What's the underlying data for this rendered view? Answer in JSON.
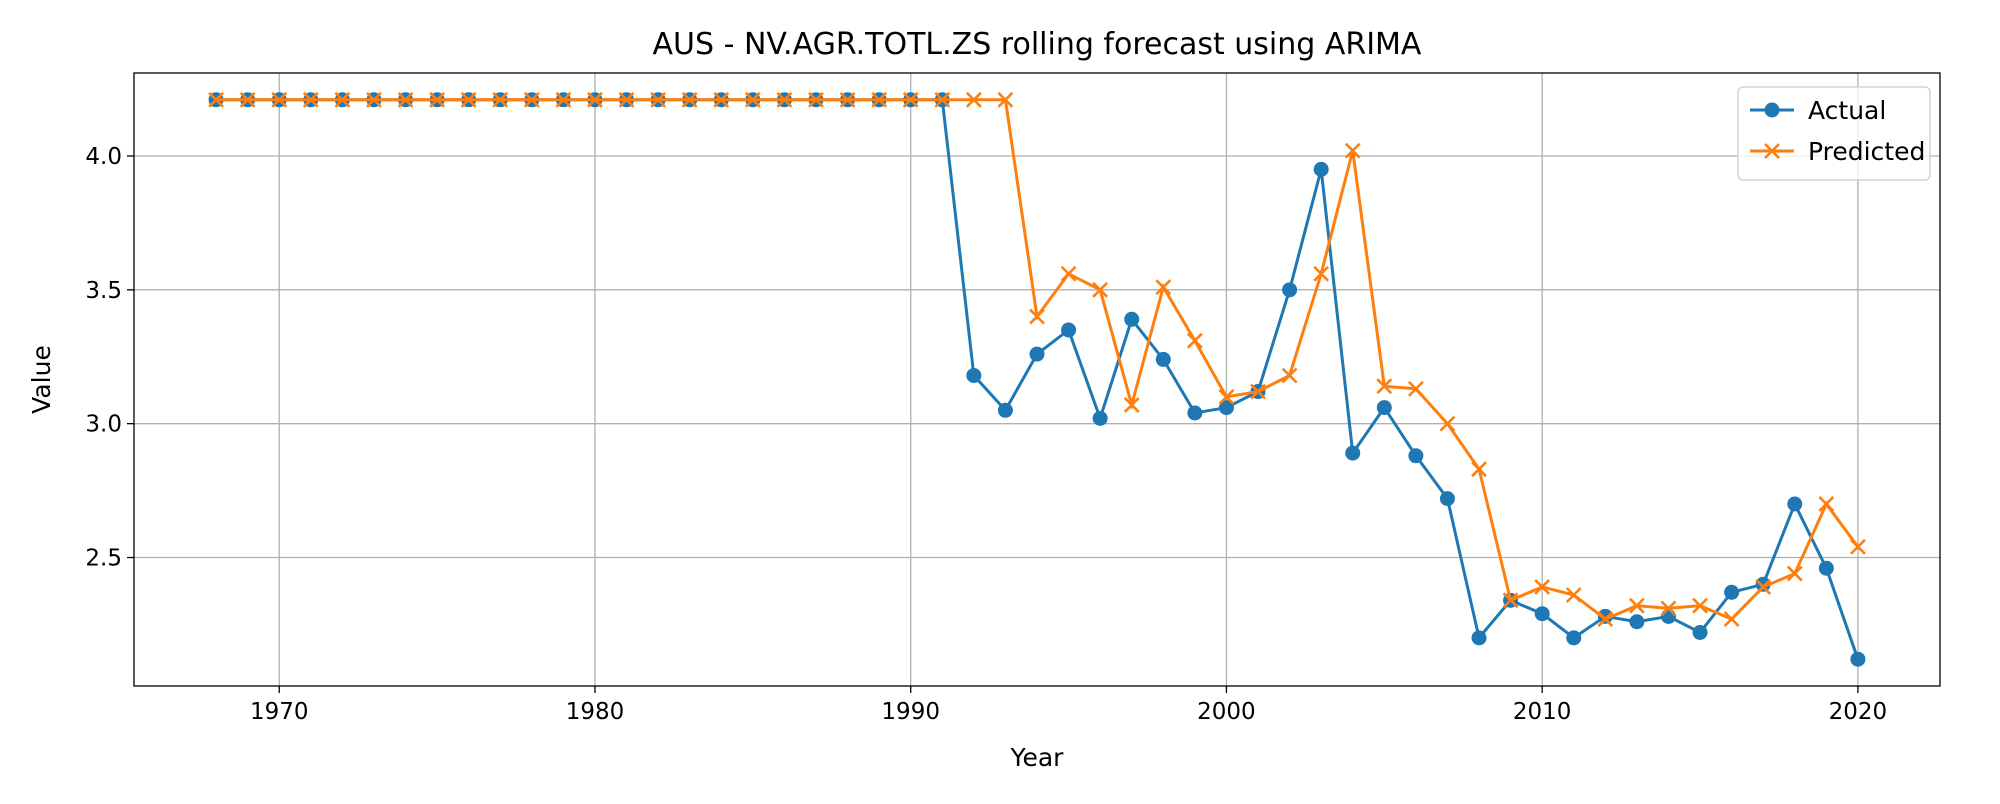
{
  "chart_data": {
    "type": "line",
    "title": "AUS - NV.AGR.TOTL.ZS rolling forecast using ARIMA",
    "xlabel": "Year",
    "ylabel": "Value",
    "xlim": [
      1965.4,
      2022.6
    ],
    "ylim": [
      2.02,
      4.31
    ],
    "x_ticks": [
      1970,
      1980,
      1990,
      2000,
      2010,
      2020
    ],
    "x_tick_labels": [
      "1970",
      "1980",
      "1990",
      "2000",
      "2010",
      "2020"
    ],
    "y_ticks": [
      2.5,
      3.0,
      3.5,
      4.0
    ],
    "y_tick_labels": [
      "2.5",
      "3.0",
      "3.5",
      "4.0"
    ],
    "grid": true,
    "legend_position": "top-right",
    "x": [
      1968,
      1969,
      1970,
      1971,
      1972,
      1973,
      1974,
      1975,
      1976,
      1977,
      1978,
      1979,
      1980,
      1981,
      1982,
      1983,
      1984,
      1985,
      1986,
      1987,
      1988,
      1989,
      1990,
      1991,
      1992,
      1993,
      1994,
      1995,
      1996,
      1997,
      1998,
      1999,
      2000,
      2001,
      2002,
      2003,
      2004,
      2005,
      2006,
      2007,
      2008,
      2009,
      2010,
      2011,
      2012,
      2013,
      2014,
      2015,
      2016,
      2017,
      2018,
      2019,
      2020
    ],
    "series": [
      {
        "name": "Actual",
        "color": "#1f77b4",
        "marker": "circle",
        "values": [
          4.21,
          4.21,
          4.21,
          4.21,
          4.21,
          4.21,
          4.21,
          4.21,
          4.21,
          4.21,
          4.21,
          4.21,
          4.21,
          4.21,
          4.21,
          4.21,
          4.21,
          4.21,
          4.21,
          4.21,
          4.21,
          4.21,
          4.21,
          4.21,
          3.18,
          3.05,
          3.26,
          3.35,
          3.02,
          3.39,
          3.24,
          3.04,
          3.06,
          3.12,
          3.5,
          3.95,
          2.89,
          3.06,
          2.88,
          2.72,
          2.2,
          2.34,
          2.29,
          2.2,
          2.28,
          2.26,
          2.28,
          2.22,
          2.37,
          2.4,
          2.7,
          2.46,
          2.12
        ]
      },
      {
        "name": "Predicted",
        "color": "#ff7f0e",
        "marker": "x",
        "values": [
          4.21,
          4.21,
          4.21,
          4.21,
          4.21,
          4.21,
          4.21,
          4.21,
          4.21,
          4.21,
          4.21,
          4.21,
          4.21,
          4.21,
          4.21,
          4.21,
          4.21,
          4.21,
          4.21,
          4.21,
          4.21,
          4.21,
          4.21,
          4.21,
          4.21,
          4.21,
          3.4,
          3.56,
          3.5,
          3.07,
          3.51,
          3.31,
          3.1,
          3.12,
          3.18,
          3.56,
          4.02,
          3.14,
          3.13,
          3.0,
          2.83,
          2.34,
          2.39,
          2.36,
          2.27,
          2.32,
          2.31,
          2.32,
          2.27,
          2.39,
          2.44,
          2.7,
          2.54
        ]
      }
    ]
  }
}
